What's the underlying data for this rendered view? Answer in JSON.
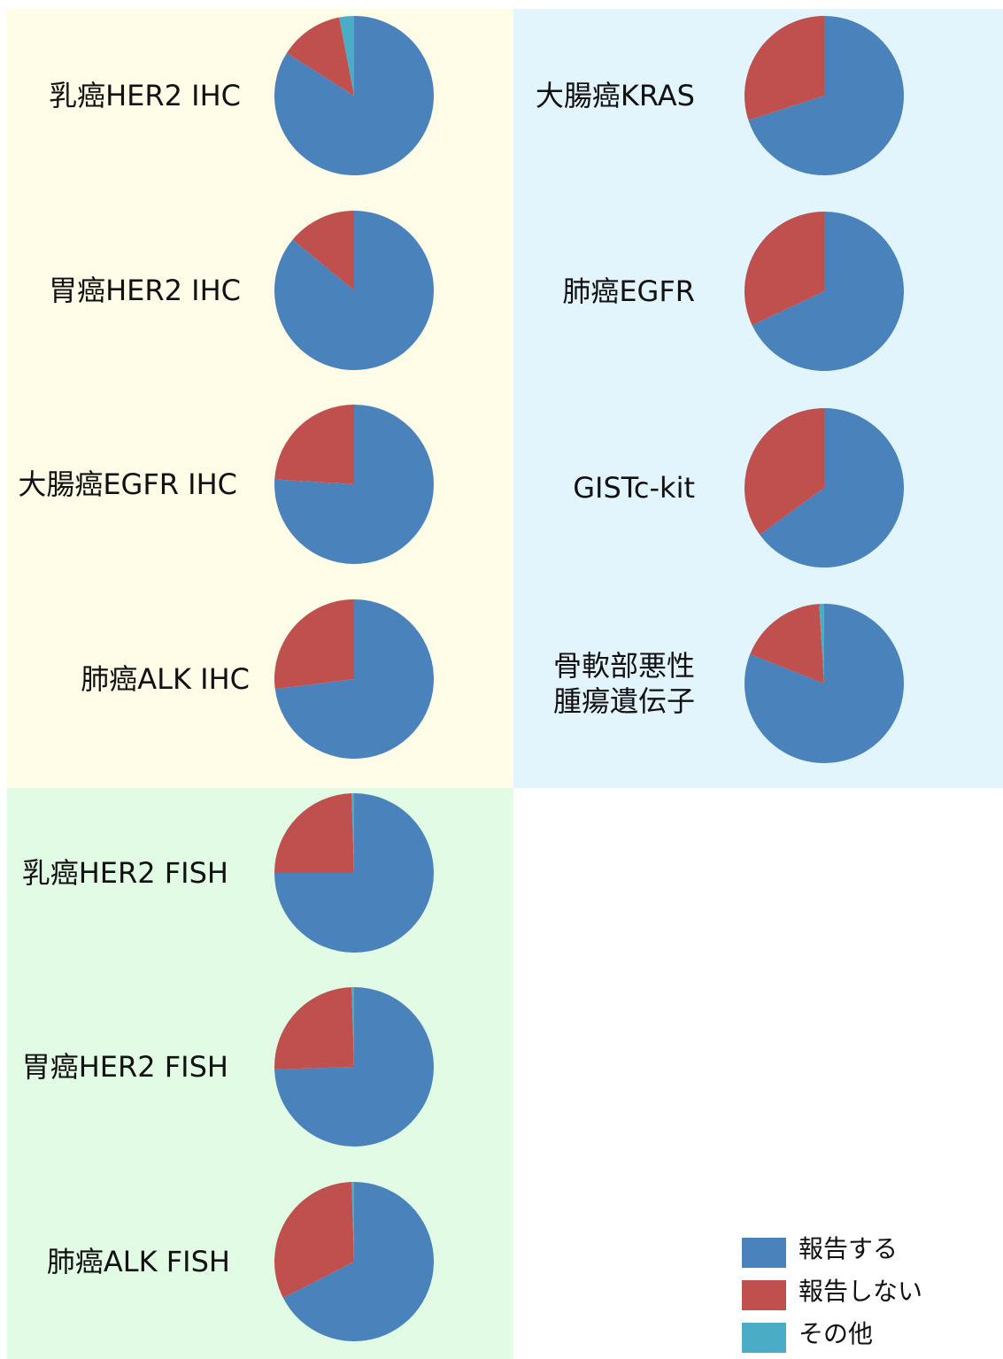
{
  "chart_data": [
    {
      "type": "pie",
      "title": "乳癌HER2 IHC",
      "values": [
        84,
        13,
        3
      ]
    },
    {
      "type": "pie",
      "title": "胃癌HER2 IHC",
      "values": [
        86,
        14,
        0
      ]
    },
    {
      "type": "pie",
      "title": "大腸癌EGFR IHC",
      "values": [
        76,
        24,
        0
      ]
    },
    {
      "type": "pie",
      "title": "肺癌ALK IHC",
      "values": [
        73,
        27,
        0
      ]
    },
    {
      "type": "pie",
      "title": "大腸癌KRAS",
      "values": [
        70,
        30,
        0
      ]
    },
    {
      "type": "pie",
      "title": "肺癌EGFR",
      "values": [
        68,
        32,
        0
      ]
    },
    {
      "type": "pie",
      "title": "GISTc-kit",
      "values": [
        65,
        35,
        0
      ]
    },
    {
      "type": "pie",
      "title": "骨軟部悪性\n腫瘍遺伝子",
      "values": [
        81,
        18,
        1
      ]
    },
    {
      "type": "pie",
      "title": "乳癌HER2 FISH",
      "values": [
        75,
        24.5,
        0.5
      ]
    },
    {
      "type": "pie",
      "title": "胃癌HER2 FISH",
      "values": [
        74.5,
        25,
        0.5
      ]
    },
    {
      "type": "pie",
      "title": "肺癌ALK FISH",
      "values": [
        67.5,
        32,
        0.5
      ]
    }
  ],
  "legend": {
    "categories": [
      "報告する",
      "報告しない",
      "その他"
    ],
    "colors": [
      "#4a82bb",
      "#c0504d",
      "#4bacc6"
    ]
  }
}
